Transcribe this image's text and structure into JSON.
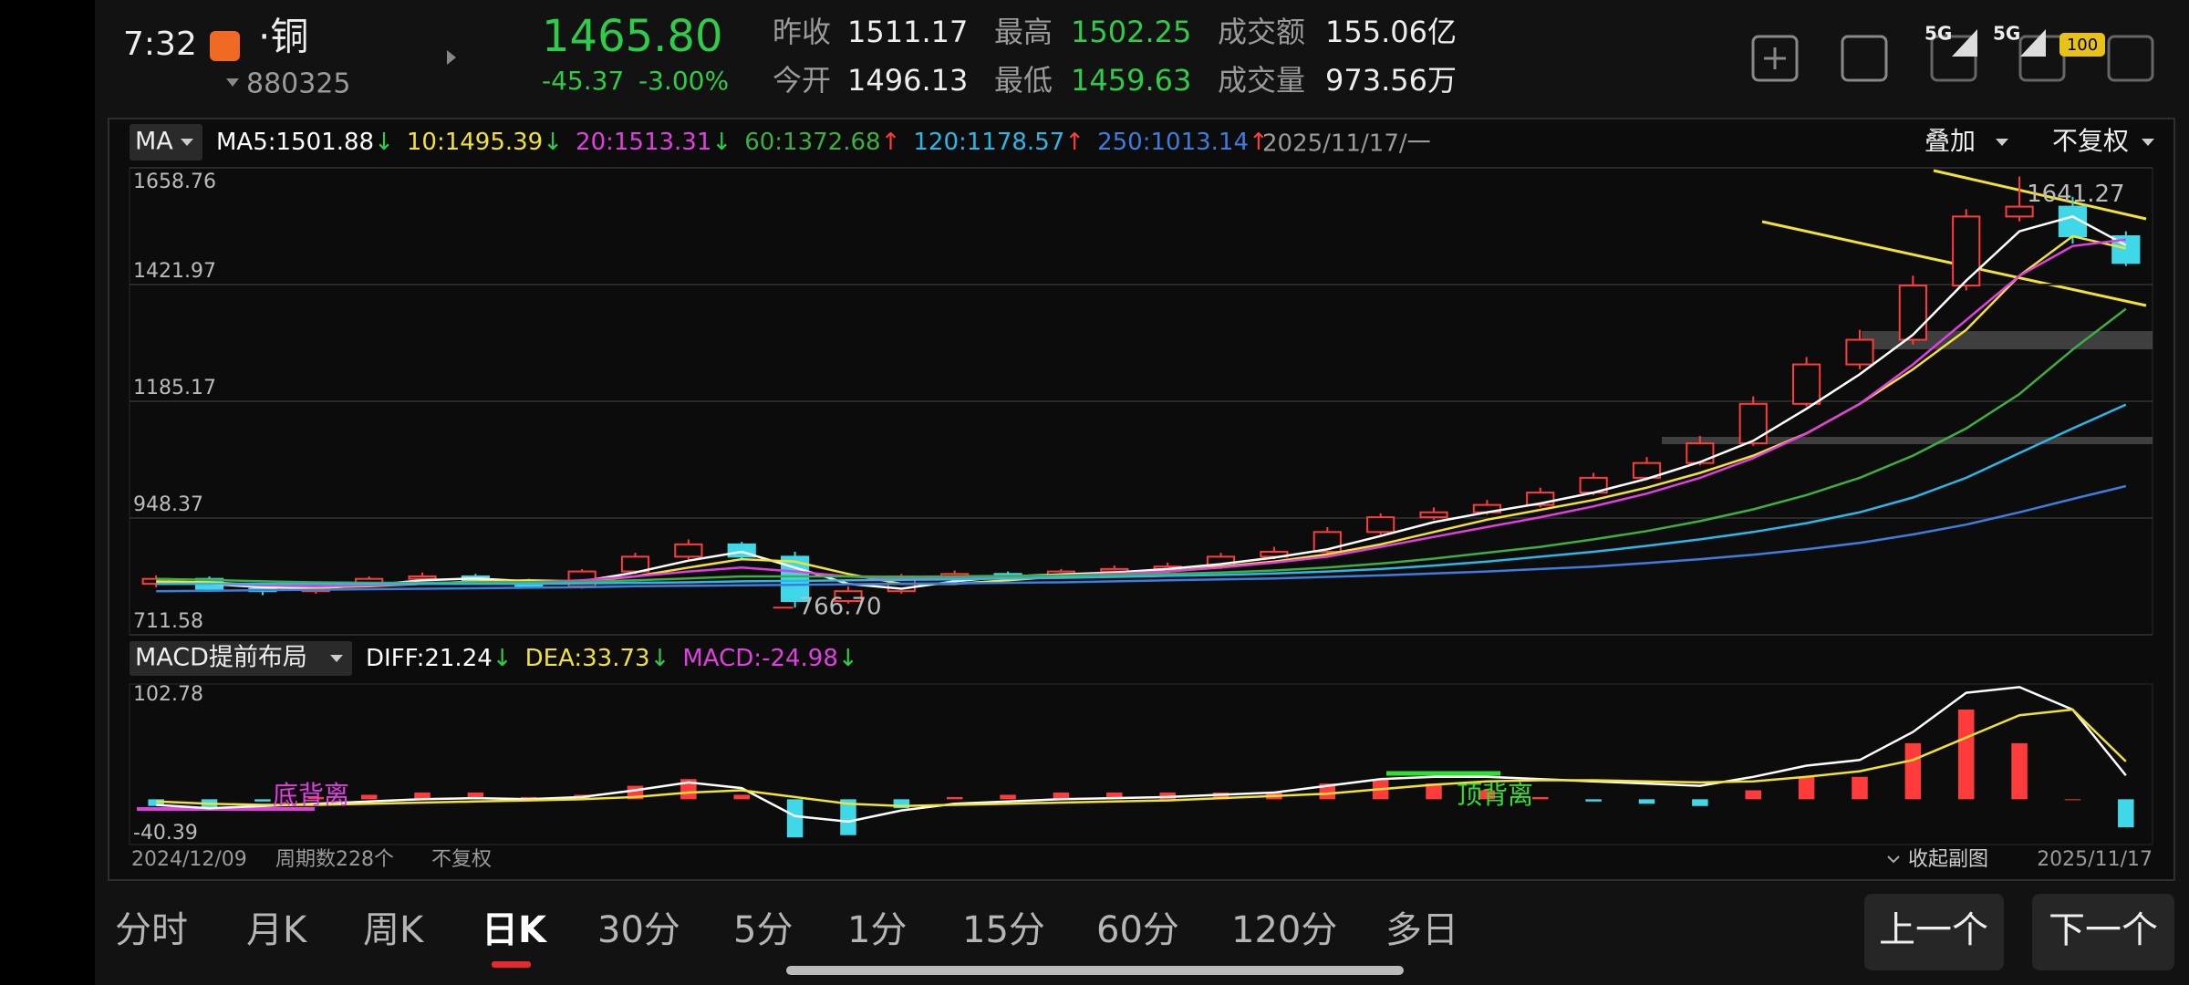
{
  "status_bar": {
    "time": "7:32",
    "signal_1": "5G",
    "signal_2": "5G",
    "battery": "100"
  },
  "header": {
    "title": "·铜",
    "code": "880325",
    "price": "1465.80",
    "change": "-45.37",
    "change_pct": "-3.00%",
    "stats": [
      {
        "label": "昨收",
        "value": "1511.17"
      },
      {
        "label": "今开",
        "value": "1496.13"
      },
      {
        "label": "最高",
        "value": "1502.25"
      },
      {
        "label": "最低",
        "value": "1459.63"
      },
      {
        "label": "成交额",
        "value": "155.06亿"
      },
      {
        "label": "成交量",
        "value": "973.56万"
      }
    ]
  },
  "indicator_bar": {
    "selector": "MA",
    "date": "2025/11/17/一",
    "overlay": "叠加",
    "adjust": "不复权"
  },
  "chart_data": [
    {
      "type": "candlestick",
      "categories": [
        "2024/12/09",
        null,
        null,
        null,
        null,
        null,
        null,
        null,
        null,
        null,
        null,
        null,
        null,
        null,
        null,
        null,
        null,
        null,
        null,
        null,
        null,
        null,
        null,
        null,
        null,
        null,
        null,
        null,
        null,
        null,
        null,
        null,
        null,
        null,
        null,
        null,
        null,
        "2025/11/17"
      ],
      "open": [
        815,
        825,
        805,
        800,
        815,
        825,
        830,
        820,
        810,
        840,
        870,
        895,
        870,
        780,
        800,
        830,
        835,
        830,
        840,
        845,
        850,
        870,
        880,
        920,
        950,
        960,
        975,
        1000,
        1030,
        1060,
        1100,
        1180,
        1260,
        1310,
        1420,
        1560,
        1580,
        1520
      ],
      "high": [
        832,
        830,
        812,
        818,
        830,
        838,
        835,
        825,
        845,
        878,
        905,
        900,
        880,
        810,
        835,
        842,
        840,
        845,
        852,
        858,
        878,
        890,
        930,
        958,
        970,
        985,
        1010,
        1040,
        1072,
        1115,
        1195,
        1275,
        1330,
        1440,
        1575,
        1641.27,
        1600,
        1530
      ],
      "low": [
        808,
        800,
        792,
        795,
        810,
        820,
        815,
        805,
        805,
        835,
        865,
        865,
        766.7,
        775,
        795,
        825,
        825,
        825,
        835,
        840,
        845,
        865,
        875,
        915,
        945,
        955,
        970,
        995,
        1025,
        1055,
        1095,
        1175,
        1250,
        1300,
        1410,
        1550,
        1505,
        1459.63
      ],
      "close": [
        825,
        805,
        800,
        815,
        825,
        830,
        820,
        810,
        840,
        870,
        895,
        870,
        780,
        800,
        830,
        835,
        830,
        840,
        845,
        850,
        870,
        880,
        920,
        950,
        960,
        975,
        1000,
        1030,
        1060,
        1100,
        1180,
        1260,
        1310,
        1420,
        1560,
        1580,
        1520,
        1465.8
      ],
      "extreme_labels": {
        "high": "1641.27",
        "low": "766.70"
      },
      "up_color": "#ff3b3b",
      "down_color": "#3fd8e8",
      "ylim": [
        711.58,
        1658.76
      ],
      "yticks": [
        1658.76,
        1421.97,
        1185.17,
        948.37,
        711.58
      ],
      "grid": true,
      "series": [
        {
          "name": "MA5:",
          "color": "#ffffff",
          "current": 1501.88,
          "trend": "↓",
          "values": [
            818,
            815,
            808,
            806,
            812,
            822,
            826,
            820,
            820,
            838,
            862,
            880,
            848,
            815,
            805,
            820,
            830,
            834,
            838,
            845,
            855,
            868,
            885,
            912,
            940,
            960,
            978,
            1000,
            1028,
            1062,
            1105,
            1170,
            1240,
            1320,
            1430,
            1530,
            1560,
            1501.88
          ]
        },
        {
          "name": "10:",
          "color": "#f2e232",
          "current": 1495.39,
          "trend": "↓",
          "values": [
            820,
            818,
            812,
            808,
            810,
            815,
            820,
            822,
            820,
            830,
            848,
            865,
            860,
            835,
            815,
            815,
            822,
            830,
            835,
            840,
            850,
            860,
            875,
            895,
            920,
            945,
            965,
            985,
            1010,
            1040,
            1075,
            1120,
            1180,
            1250,
            1330,
            1440,
            1520,
            1495.39
          ]
        },
        {
          "name": "20:",
          "color": "#e23fe2",
          "current": 1513.31,
          "trend": "↓",
          "values": [
            815,
            815,
            812,
            810,
            812,
            815,
            818,
            818,
            822,
            830,
            840,
            848,
            840,
            830,
            825,
            828,
            830,
            832,
            835,
            840,
            848,
            858,
            870,
            890,
            910,
            930,
            950,
            972,
            998,
            1030,
            1070,
            1120,
            1180,
            1260,
            1350,
            1440,
            1500,
            1513.31
          ]
        },
        {
          "name": "60:",
          "color": "#3cb043",
          "current": 1372.68,
          "trend": "↑",
          "values": [
            825,
            823,
            820,
            818,
            817,
            817,
            818,
            818,
            819,
            822,
            826,
            830,
            830,
            830,
            829,
            830,
            831,
            832,
            833,
            835,
            838,
            842,
            848,
            856,
            866,
            878,
            890,
            905,
            922,
            942,
            966,
            995,
            1030,
            1075,
            1130,
            1200,
            1290,
            1372.68
          ]
        },
        {
          "name": "120:",
          "color": "#2ab8e8",
          "current": 1178.57,
          "trend": "↑",
          "values": [
            815,
            815,
            815,
            815,
            815,
            815,
            815,
            815,
            816,
            817,
            818,
            820,
            821,
            822,
            823,
            824,
            826,
            827,
            829,
            831,
            833,
            836,
            840,
            845,
            852,
            860,
            870,
            880,
            892,
            905,
            920,
            938,
            960,
            990,
            1030,
            1080,
            1130,
            1178.57
          ]
        },
        {
          "name": "250:",
          "color": "#3d7de0",
          "current": 1013.14,
          "trend": "↑",
          "values": [
            800,
            801,
            802,
            803,
            804,
            805,
            806,
            807,
            808,
            810,
            811,
            812,
            813,
            814,
            815,
            816,
            817,
            818,
            820,
            822,
            824,
            826,
            829,
            832,
            836,
            840,
            845,
            850,
            857,
            865,
            874,
            885,
            898,
            915,
            935,
            960,
            987,
            1013.14
          ]
        }
      ]
    },
    {
      "type": "macd",
      "title": "MACD提前布局",
      "ylim": [
        -40.39,
        102.78
      ],
      "yticks": [
        102.78,
        -40.39
      ],
      "series": [
        {
          "name": "DIFF:",
          "color": "#ffffff",
          "current": 21.24,
          "trend": "↓",
          "values": [
            -5,
            -8,
            -6,
            -4,
            -2,
            0,
            1,
            0,
            2,
            8,
            15,
            10,
            -15,
            -20,
            -10,
            -4,
            -2,
            0,
            1,
            2,
            4,
            6,
            12,
            18,
            20,
            20,
            18,
            16,
            14,
            12,
            20,
            30,
            35,
            60,
            95,
            100,
            80,
            21.24
          ]
        },
        {
          "name": "DEA:",
          "color": "#f2e232",
          "current": 33.73,
          "trend": "↓",
          "values": [
            -2,
            -4,
            -5,
            -5,
            -4,
            -3,
            -2,
            -1,
            0,
            2,
            6,
            8,
            2,
            -4,
            -6,
            -5,
            -4,
            -3,
            -2,
            -1,
            1,
            3,
            5,
            9,
            13,
            16,
            17,
            17,
            16,
            15,
            16,
            20,
            25,
            35,
            55,
            75,
            80,
            33.73
          ]
        }
      ],
      "histogram": {
        "name": "MACD:",
        "color": "#e23fe2",
        "current": -24.98,
        "trend": "↓",
        "up_color": "#ff3b3b",
        "down_color": "#3fd8e8",
        "values": [
          -6,
          -8,
          -2,
          2,
          4,
          6,
          6,
          2,
          4,
          12,
          18,
          4,
          -34,
          -32,
          -8,
          2,
          4,
          6,
          6,
          6,
          6,
          6,
          14,
          18,
          14,
          8,
          2,
          -2,
          -4,
          -6,
          8,
          20,
          20,
          50,
          80,
          50,
          0,
          -24.98
        ]
      },
      "annotations": [
        {
          "text": "底背离",
          "color": "#e23fe2"
        },
        {
          "text": "顶背离",
          "color": "#30e030"
        }
      ]
    }
  ],
  "footer": {
    "period_count": "周期数228个",
    "adjust": "不复权",
    "collapse": "收起副图"
  },
  "tabs": {
    "items": [
      "分时",
      "月K",
      "周K",
      "日K",
      "30分",
      "5分",
      "1分",
      "15分",
      "60分",
      "120分",
      "多日"
    ],
    "active": 3
  },
  "buttons": [
    "上一个",
    "下一个"
  ]
}
